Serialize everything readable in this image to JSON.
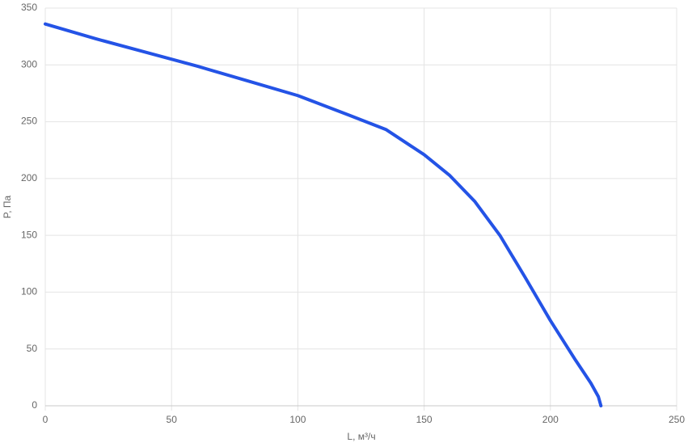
{
  "chart_data": {
    "type": "line",
    "x_label": "L, м³/ч",
    "y_label": "P, Па",
    "x": [
      0,
      20,
      40,
      60,
      80,
      100,
      120,
      135,
      150,
      160,
      170,
      180,
      190,
      200,
      210,
      216,
      219,
      220
    ],
    "series": [
      {
        "name": "P",
        "color": "#2453e6",
        "values": [
          336,
          323,
          311,
          299,
          286,
          273,
          256,
          243,
          221,
          203,
          180,
          150,
          113,
          75,
          40,
          20,
          8,
          0
        ]
      }
    ],
    "xlim": [
      0,
      250
    ],
    "xticks": [
      0,
      50,
      100,
      150,
      200,
      250
    ],
    "ylim": [
      0,
      350
    ],
    "yticks": [
      0,
      50,
      100,
      150,
      200,
      250,
      300,
      350
    ],
    "grid": true
  }
}
